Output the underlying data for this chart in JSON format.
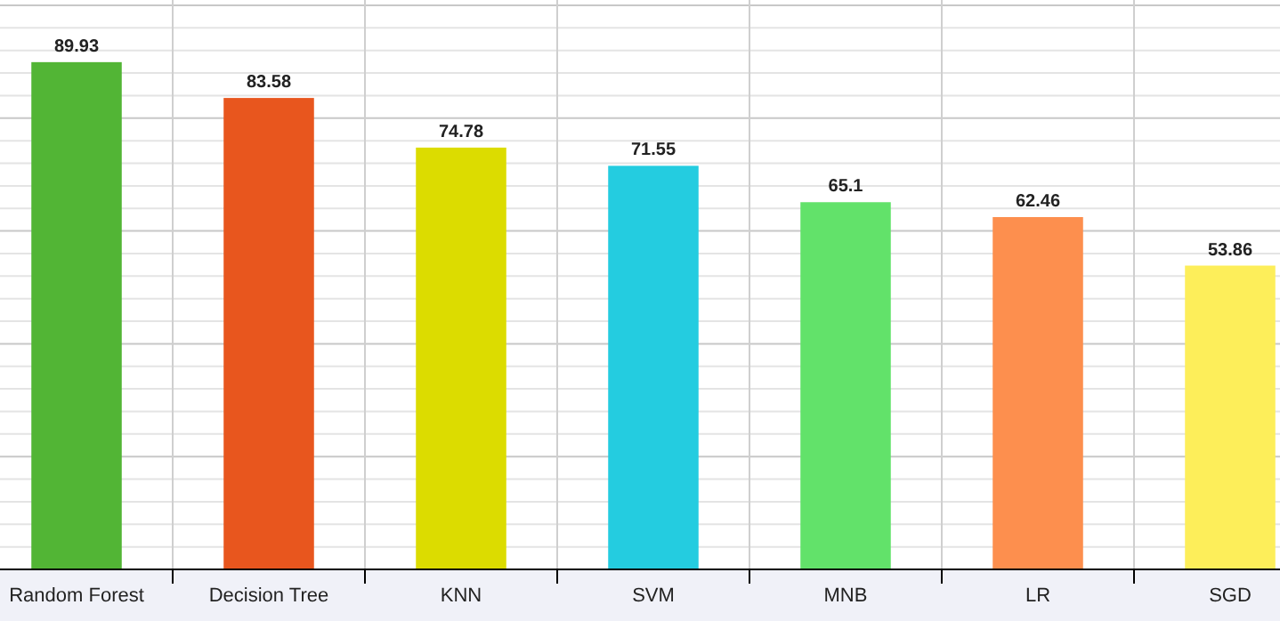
{
  "chart_data": {
    "type": "bar",
    "categories": [
      "Random Forest",
      "Decision Tree",
      "KNN",
      "SVM",
      "MNB",
      "LR",
      "SGD"
    ],
    "values": [
      89.93,
      83.58,
      74.78,
      71.55,
      65.1,
      62.46,
      53.86
    ],
    "colors": [
      "#52b535",
      "#e8561e",
      "#dcdc00",
      "#24cce0",
      "#62e26a",
      "#fd8f4e",
      "#fdee5a"
    ],
    "ylim": [
      0,
      100
    ],
    "yticks": [
      {
        "value": 0,
        "label": null
      },
      {
        "value": 4,
        "label": null
      },
      {
        "value": 8,
        "label": null
      },
      {
        "value": 12,
        "label": null
      },
      {
        "value": 16,
        "label": null
      },
      {
        "value": 20,
        "label": null
      },
      {
        "value": 24,
        "label": null
      },
      {
        "value": 28,
        "label": null
      },
      {
        "value": 32,
        "label": null
      },
      {
        "value": 36,
        "label": null
      },
      {
        "value": 40,
        "label": null
      },
      {
        "value": 44,
        "label": null
      },
      {
        "value": 48,
        "label": null
      },
      {
        "value": 52,
        "label": null
      },
      {
        "value": 56,
        "label": null
      },
      {
        "value": 60,
        "label": null
      },
      {
        "value": 64,
        "label": null
      },
      {
        "value": 68,
        "label": null
      },
      {
        "value": 72,
        "label": null
      },
      {
        "value": 76,
        "label": null
      },
      {
        "value": 80,
        "label": null
      },
      {
        "value": 84,
        "label": null
      },
      {
        "value": 88,
        "label": null
      },
      {
        "value": 92,
        "label": null
      },
      {
        "value": 96,
        "label": null
      },
      {
        "value": 100,
        "label": null
      }
    ],
    "tick_labels": "x",
    "grid": true,
    "data_labels": true
  }
}
